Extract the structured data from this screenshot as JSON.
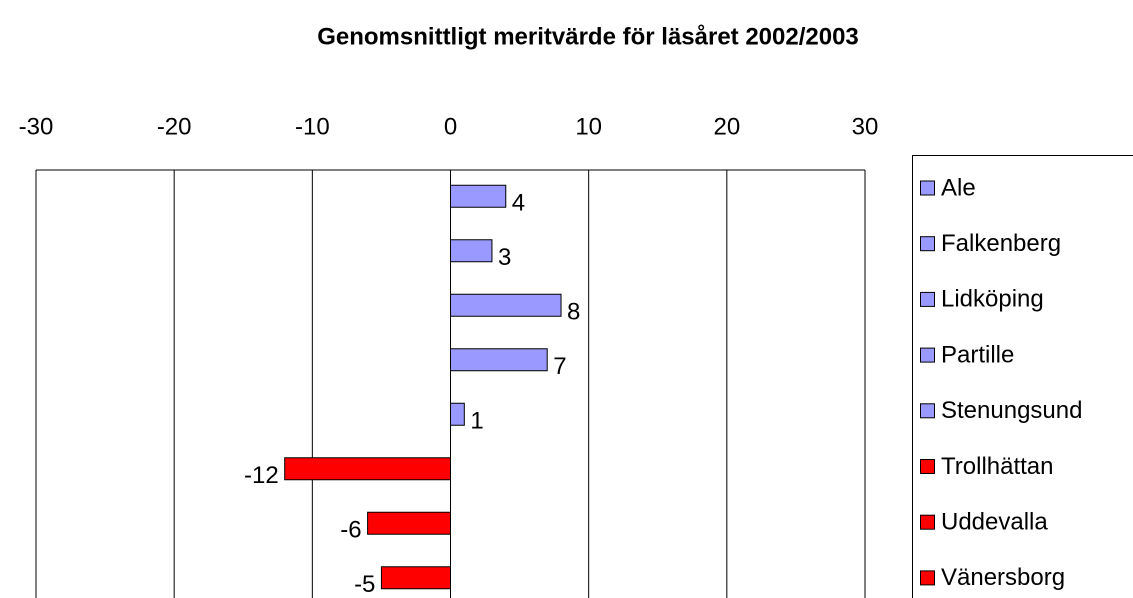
{
  "chart_data": {
    "type": "barh",
    "title": "Genomsnittligt meritvärde för läsåret 2002/2003",
    "categories": [
      "Ale",
      "Falkenberg",
      "Lidköping",
      "Partille",
      "Stenungsund",
      "Trollhättan",
      "Uddevalla",
      "Vänersborg"
    ],
    "values": [
      4,
      3,
      8,
      7,
      1,
      -12,
      -6,
      -5
    ],
    "colors": [
      "#9999ff",
      "#9999ff",
      "#9999ff",
      "#9999ff",
      "#9999ff",
      "#ff0000",
      "#ff0000",
      "#ff0000"
    ],
    "xlim": [
      -30,
      30
    ],
    "xticks": [
      -30,
      -20,
      -10,
      0,
      10,
      20,
      30
    ],
    "grid": true,
    "legend": "right"
  }
}
